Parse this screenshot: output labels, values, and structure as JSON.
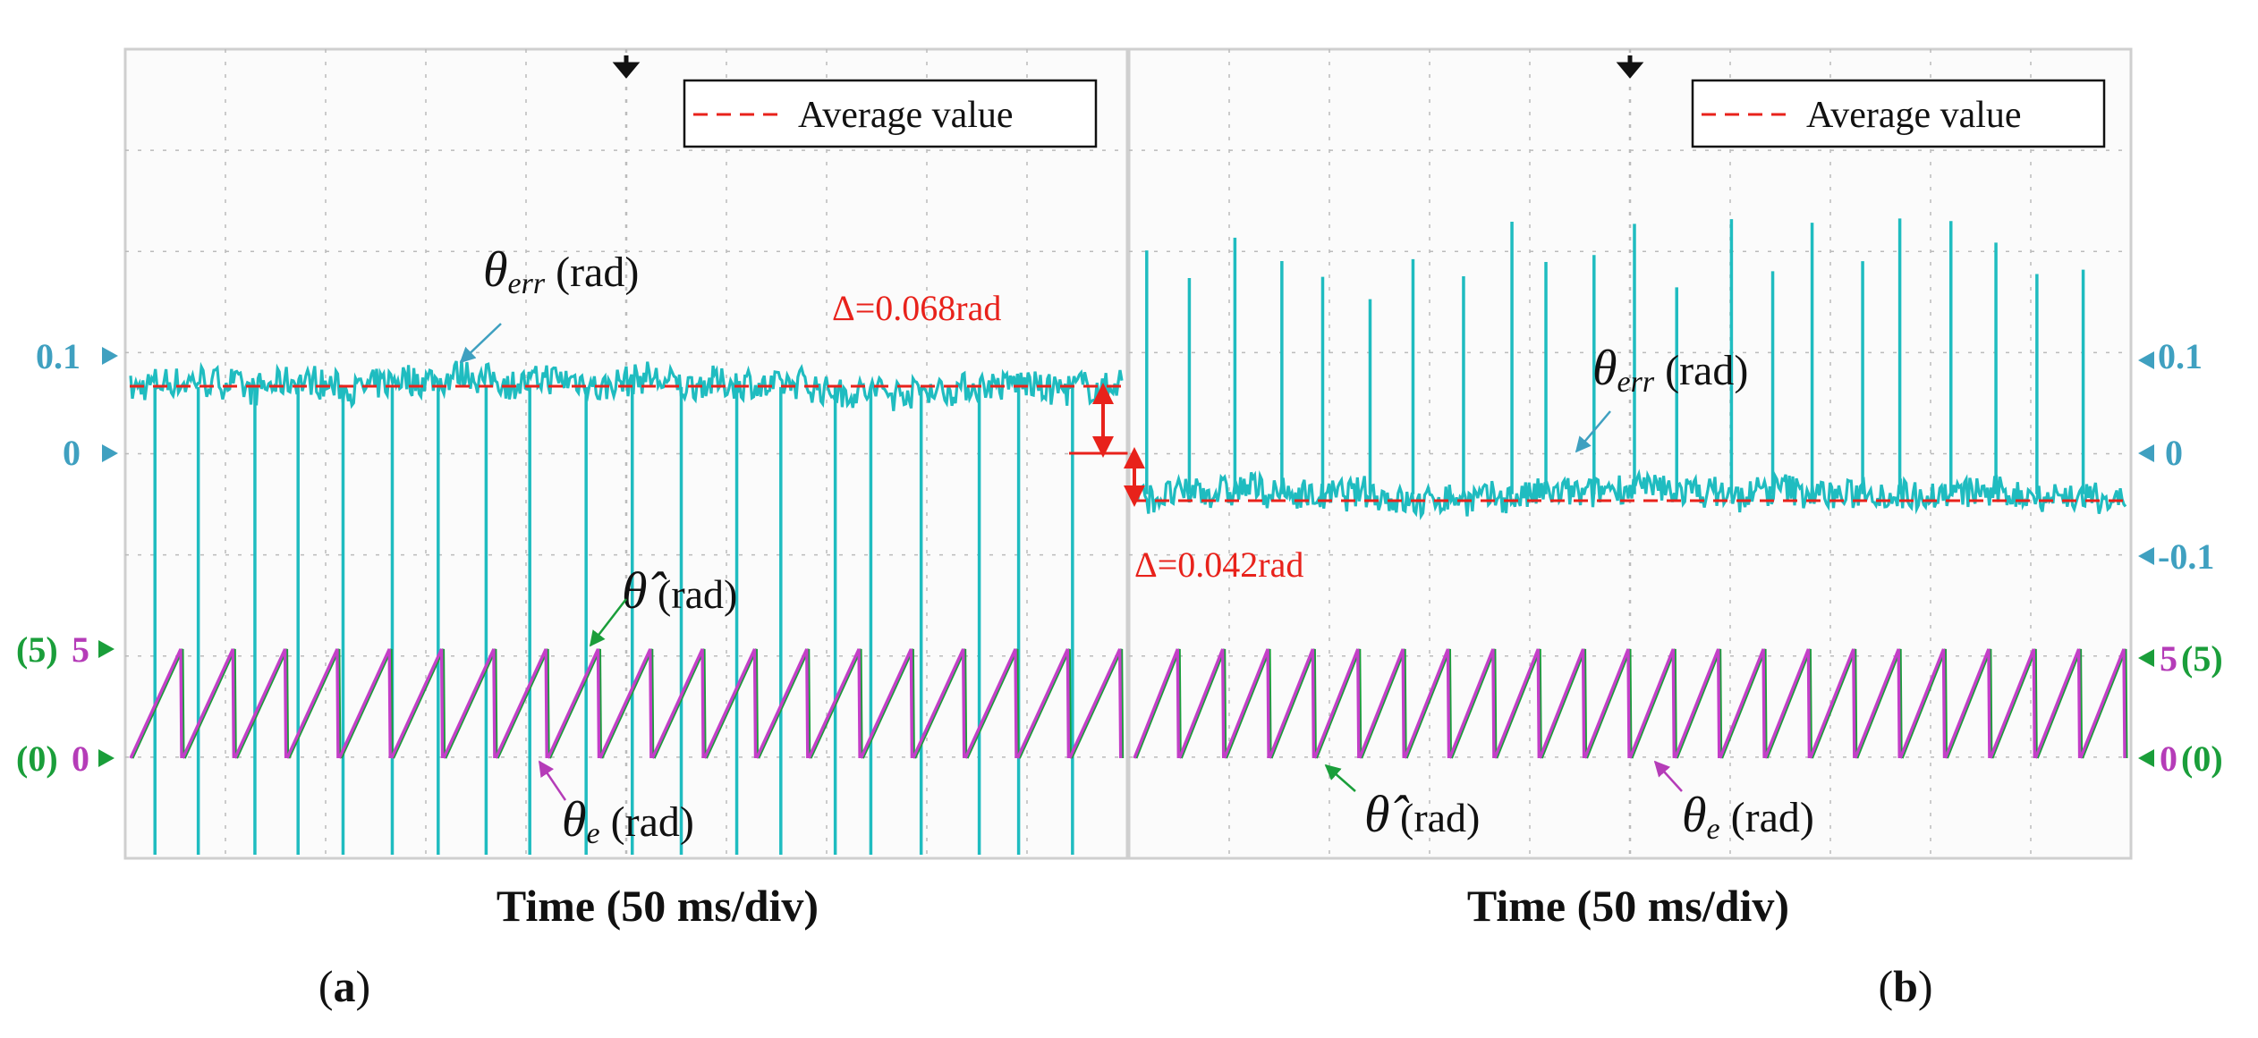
{
  "figure": {
    "panels": [
      {
        "id": "a",
        "label_open": "(",
        "label_letter": "a",
        "label_close": ")"
      },
      {
        "id": "b",
        "label_open": "(",
        "label_letter": "b",
        "label_close": ")"
      }
    ]
  },
  "colors": {
    "err": "#1fbcc0",
    "theta_e": "#c43fc8",
    "theta_hat": "#1a9e3a",
    "average": "#e8221b",
    "axis_label_blue": "#3fa0c0",
    "axis_label_green": "#1a9e3a",
    "axis_label_magenta": "#b53cb8",
    "grid": "#bbbbbb"
  },
  "chart_data": [
    {
      "panel": "a",
      "type": "line",
      "title": "",
      "xlabel": "Time (50 ms/div)",
      "x_divisions": 10,
      "legend": {
        "entry": "Average value",
        "style": "dashed",
        "placement": "top-right"
      },
      "left_ticks": {
        "err_top": "0.1",
        "err_zero": "0",
        "saw_top_green": "(5)",
        "saw_top_magenta": "5",
        "saw_zero_green": "(0)",
        "saw_zero_magenta": "0"
      },
      "series": [
        {
          "name": "θerr",
          "unit": "rad",
          "mean": 0.068,
          "noise_amplitude": 0.02,
          "spike_count": 20,
          "spikes_direction": "down"
        },
        {
          "name": "θe",
          "unit": "rad",
          "waveform": "sawtooth",
          "min": 0,
          "max": 5,
          "periods": 19
        },
        {
          "name": "θ̂",
          "unit": "rad",
          "waveform": "sawtooth",
          "min": 0,
          "max": 5,
          "periods": 19
        }
      ],
      "average_value": 0.068,
      "annotations": {
        "err_label": {
          "symbol": "θ",
          "sub": "err",
          "unit": " (rad)"
        },
        "delta": "Δ=0.068rad",
        "hat_label": {
          "symbol": "θ̂",
          "unit": " (rad)"
        },
        "e_label": {
          "symbol": "θ",
          "sub": "e",
          "unit": " (rad)"
        }
      }
    },
    {
      "panel": "b",
      "type": "line",
      "title": "",
      "xlabel": "Time (50 ms/div)",
      "x_divisions": 10,
      "legend": {
        "entry": "Average value",
        "style": "dashed",
        "placement": "top-right"
      },
      "right_ticks": {
        "err_top": "0.1",
        "err_zero": "0",
        "err_bottom": "-0.1",
        "saw_top_magenta": "5",
        "saw_top_green": "(5)",
        "saw_zero_magenta": "0",
        "saw_zero_green": "(0)"
      },
      "series": [
        {
          "name": "θerr",
          "unit": "rad",
          "mean": -0.042,
          "noise_amplitude": 0.02,
          "spike_count": 22,
          "spikes_direction": "up"
        },
        {
          "name": "θe",
          "unit": "rad",
          "waveform": "sawtooth",
          "min": 0,
          "max": 5,
          "periods": 22
        },
        {
          "name": "θ̂",
          "unit": "rad",
          "waveform": "sawtooth",
          "min": 0,
          "max": 5,
          "periods": 22
        }
      ],
      "average_value": -0.042,
      "annotations": {
        "err_label": {
          "symbol": "θ",
          "sub": "err",
          "unit": " (rad)"
        },
        "delta": "Δ=0.042rad",
        "hat_label": {
          "symbol": "θ̂",
          "unit": " (rad)"
        },
        "e_label": {
          "symbol": "θ",
          "sub": "e",
          "unit": " (rad)"
        }
      }
    }
  ]
}
